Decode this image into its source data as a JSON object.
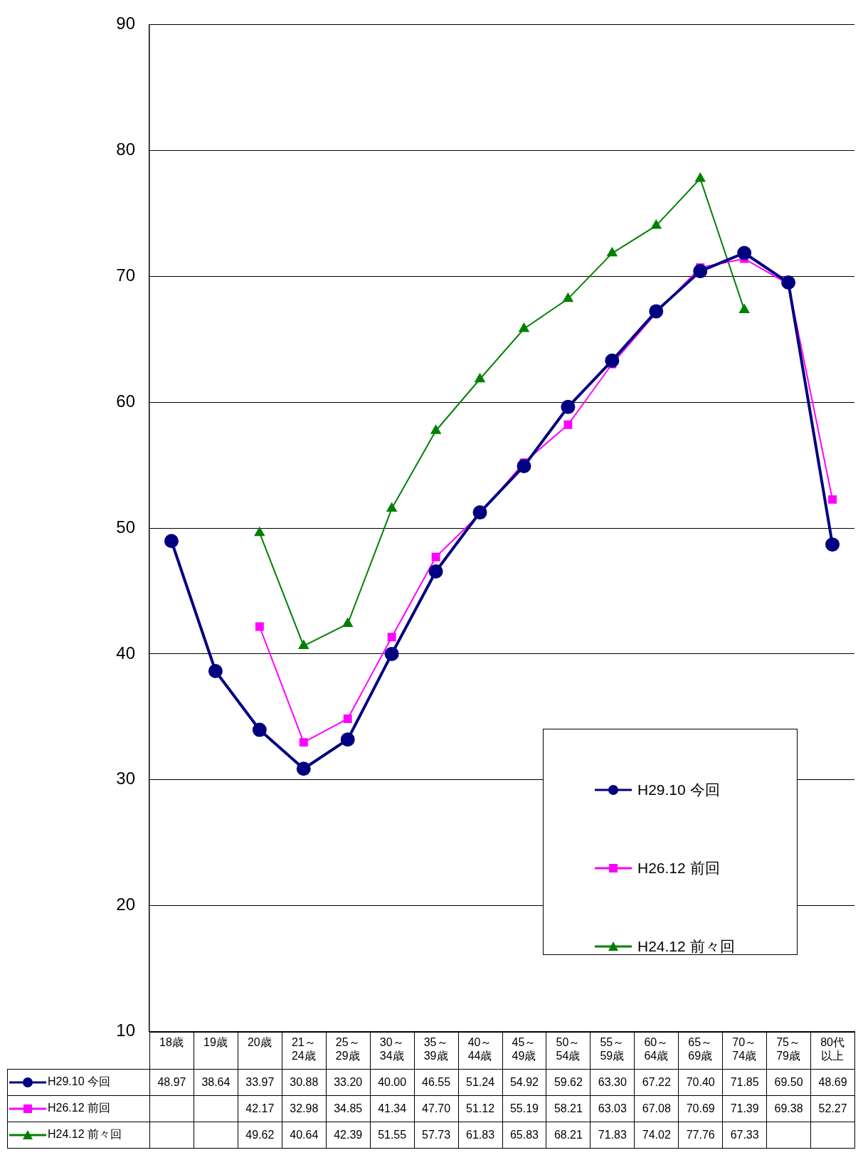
{
  "chart_data": {
    "type": "line",
    "categories": [
      "18歳",
      "19歳",
      "20歳",
      "21～24歳",
      "25～29歳",
      "30～34歳",
      "35～39歳",
      "40～44歳",
      "45～49歳",
      "50～54歳",
      "55～59歳",
      "60～64歳",
      "65～69歳",
      "70～74歳",
      "75～79歳",
      "80代以上"
    ],
    "series": [
      {
        "name": "H29.10 今回",
        "color": "#000080",
        "marker": "circle",
        "values": [
          48.97,
          38.64,
          33.97,
          30.88,
          33.2,
          40.0,
          46.55,
          51.24,
          54.92,
          59.62,
          63.3,
          67.22,
          70.4,
          71.85,
          69.5,
          48.69
        ],
        "value_labels": [
          "48.97",
          "38.64",
          "33.97",
          "30.88",
          "33.20",
          "40.00",
          "46.55",
          "51.24",
          "54.92",
          "59.62",
          "63.30",
          "67.22",
          "70.40",
          "71.85",
          "69.50",
          "48.69"
        ]
      },
      {
        "name": "H26.12 前回",
        "color": "#ff00ff",
        "marker": "square",
        "values": [
          null,
          null,
          42.17,
          32.98,
          34.85,
          41.34,
          47.7,
          51.12,
          55.19,
          58.21,
          63.03,
          67.08,
          70.69,
          71.39,
          69.38,
          52.27
        ],
        "value_labels": [
          null,
          null,
          "42.17",
          "32.98",
          "34.85",
          "41.34",
          "47.70",
          "51.12",
          "55.19",
          "58.21",
          "63.03",
          "67.08",
          "70.69",
          "71.39",
          "69.38",
          "52.27"
        ]
      },
      {
        "name": "H24.12 前々回",
        "color": "#008000",
        "marker": "triangle",
        "values": [
          null,
          null,
          49.62,
          40.64,
          42.39,
          51.55,
          57.73,
          61.83,
          65.83,
          68.21,
          71.83,
          74.02,
          77.76,
          67.33,
          null,
          null
        ],
        "value_labels": [
          null,
          null,
          "49.62",
          "40.64",
          "42.39",
          "51.55",
          "57.73",
          "61.83",
          "65.83",
          "68.21",
          "71.83",
          "74.02",
          "77.76",
          "67.33",
          null,
          null
        ]
      }
    ],
    "ylim": [
      10,
      90
    ],
    "yticks": [
      10,
      20,
      30,
      40,
      50,
      60,
      70,
      80,
      90
    ],
    "grid": "y",
    "legend": "bottom right"
  }
}
